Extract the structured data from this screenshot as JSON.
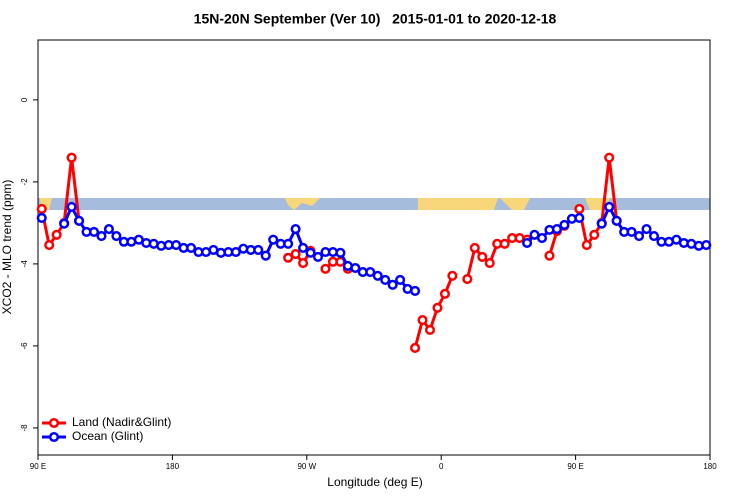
{
  "chart_data": {
    "type": "line",
    "title": "15N-20N September (Ver 10)   2015-01-01 to 2020-12-18",
    "xlabel": "Longitude (deg E)",
    "ylabel": "XCO2 - MLO trend (ppm)",
    "x": [
      92.5,
      97.5,
      102.5,
      107.5,
      112.5,
      117.5,
      122.5,
      127.5,
      132.5,
      137.5,
      142.5,
      147.5,
      152.5,
      157.5,
      162.5,
      167.5,
      172.5,
      177.5,
      182.5,
      187.5,
      192.5,
      197.5,
      202.5,
      207.5,
      212.5,
      217.5,
      222.5,
      227.5,
      232.5,
      237.5,
      242.5,
      247.5,
      252.5,
      257.5,
      262.5,
      267.5,
      272.5,
      277.5,
      282.5,
      287.5,
      292.5,
      297.5,
      302.5,
      307.5,
      312.5,
      317.5,
      322.5,
      327.5,
      332.5,
      337.5,
      342.5,
      347.5,
      352.5,
      357.5,
      362.5,
      367.5,
      372.5,
      377.5,
      382.5,
      387.5,
      392.5,
      397.5,
      402.5,
      407.5,
      412.5,
      417.5,
      422.5,
      427.5,
      432.5,
      437.5,
      442.5,
      447.5,
      452.5,
      457.5,
      462.5,
      467.5,
      472.5,
      477.5,
      482.5,
      487.5,
      492.5,
      497.5,
      502.5,
      507.5,
      512.5,
      517.5,
      522.5,
      527.5,
      532.5,
      537.5
    ],
    "series": [
      {
        "name": "Land (Nadir&Glint)",
        "color": "#ff0000",
        "values": [
          -2.66,
          -3.54,
          -3.29,
          -3.0,
          -1.41,
          -2.95,
          null,
          null,
          null,
          null,
          null,
          null,
          null,
          null,
          null,
          null,
          null,
          null,
          null,
          null,
          null,
          null,
          null,
          null,
          null,
          null,
          null,
          null,
          null,
          null,
          null,
          null,
          null,
          -3.85,
          -3.76,
          -3.98,
          -3.68,
          null,
          -4.12,
          -3.95,
          -3.95,
          -4.12,
          null,
          null,
          null,
          null,
          null,
          null,
          null,
          null,
          -6.05,
          -5.37,
          -5.61,
          -5.07,
          -4.73,
          -4.29,
          null,
          -4.37,
          -3.61,
          -3.83,
          -3.98,
          -3.51,
          -3.51,
          -3.37,
          -3.37,
          -3.41,
          null,
          null,
          -3.8,
          -3.2,
          -3.07,
          null,
          -2.66,
          -3.54,
          -3.29,
          -3.0,
          -1.41,
          -2.95,
          null,
          null,
          null,
          null,
          null,
          null,
          null,
          null,
          null,
          null,
          null,
          null
        ]
      },
      {
        "name": "Ocean (Glint)",
        "color": "#0000ff",
        "values": [
          -2.88,
          null,
          null,
          -3.02,
          -2.61,
          -2.95,
          -3.22,
          -3.22,
          -3.32,
          -3.15,
          -3.32,
          -3.46,
          -3.46,
          -3.41,
          -3.49,
          -3.51,
          -3.56,
          -3.54,
          -3.54,
          -3.61,
          -3.61,
          -3.71,
          -3.71,
          -3.66,
          -3.73,
          -3.71,
          -3.71,
          -3.63,
          -3.66,
          -3.66,
          -3.8,
          -3.41,
          -3.51,
          -3.51,
          -3.15,
          -3.61,
          -3.73,
          -3.83,
          -3.71,
          -3.71,
          -3.73,
          -4.05,
          -4.1,
          -4.2,
          -4.2,
          -4.29,
          -4.39,
          -4.51,
          -4.39,
          -4.61,
          -4.66,
          null,
          null,
          null,
          null,
          null,
          null,
          null,
          null,
          null,
          null,
          null,
          null,
          null,
          null,
          -3.49,
          -3.29,
          -3.37,
          -3.17,
          -3.15,
          -3.05,
          -2.9,
          -2.88,
          null,
          null,
          -3.02,
          -2.61,
          -2.95,
          -3.22,
          -3.22,
          -3.32,
          -3.15,
          -3.32,
          -3.46,
          -3.46,
          -3.41,
          -3.49,
          -3.51,
          -3.56,
          -3.54
        ]
      }
    ],
    "xlim": [
      90,
      540
    ],
    "xticks": [
      {
        "value": 90,
        "label": "90 E"
      },
      180,
      {
        "value": 270,
        "label": "90 W"
      },
      {
        "value": 360,
        "label": "0"
      },
      {
        "value": 450,
        "label": "90 E"
      },
      {
        "value": 540,
        "label": "180"
      }
    ],
    "ylim": [
      -8.66,
      1.46
    ],
    "yticks": [
      0,
      -2,
      -4,
      -6,
      -8
    ],
    "legend": "bottomleft"
  }
}
